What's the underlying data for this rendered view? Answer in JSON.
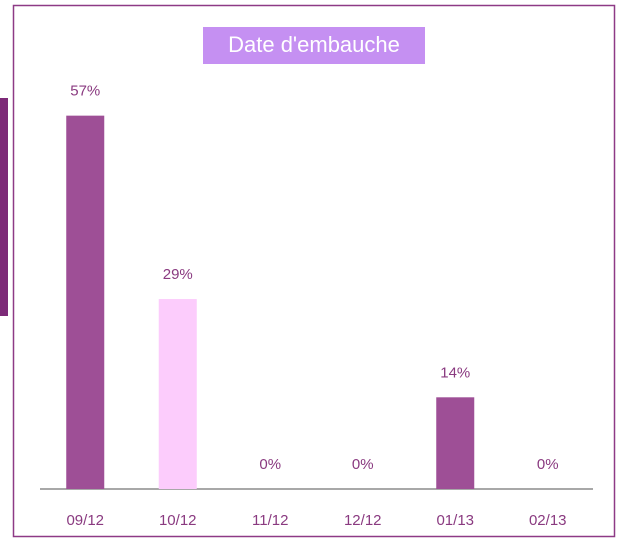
{
  "chart_data": {
    "type": "bar",
    "title": "Date d'embauche",
    "categories": [
      "09/12",
      "10/12",
      "11/12",
      "12/12",
      "01/13",
      "02/13"
    ],
    "values": [
      57,
      29,
      0,
      0,
      14,
      0
    ],
    "value_labels": [
      "57%",
      "29%",
      "0%",
      "0%",
      "14%",
      "0%"
    ],
    "colors": [
      "#9e4f96",
      "#fcccfc",
      "#9e4f96",
      "#9e4f96",
      "#9e4f96",
      "#9e4f96"
    ],
    "ylim": [
      0,
      60
    ]
  }
}
